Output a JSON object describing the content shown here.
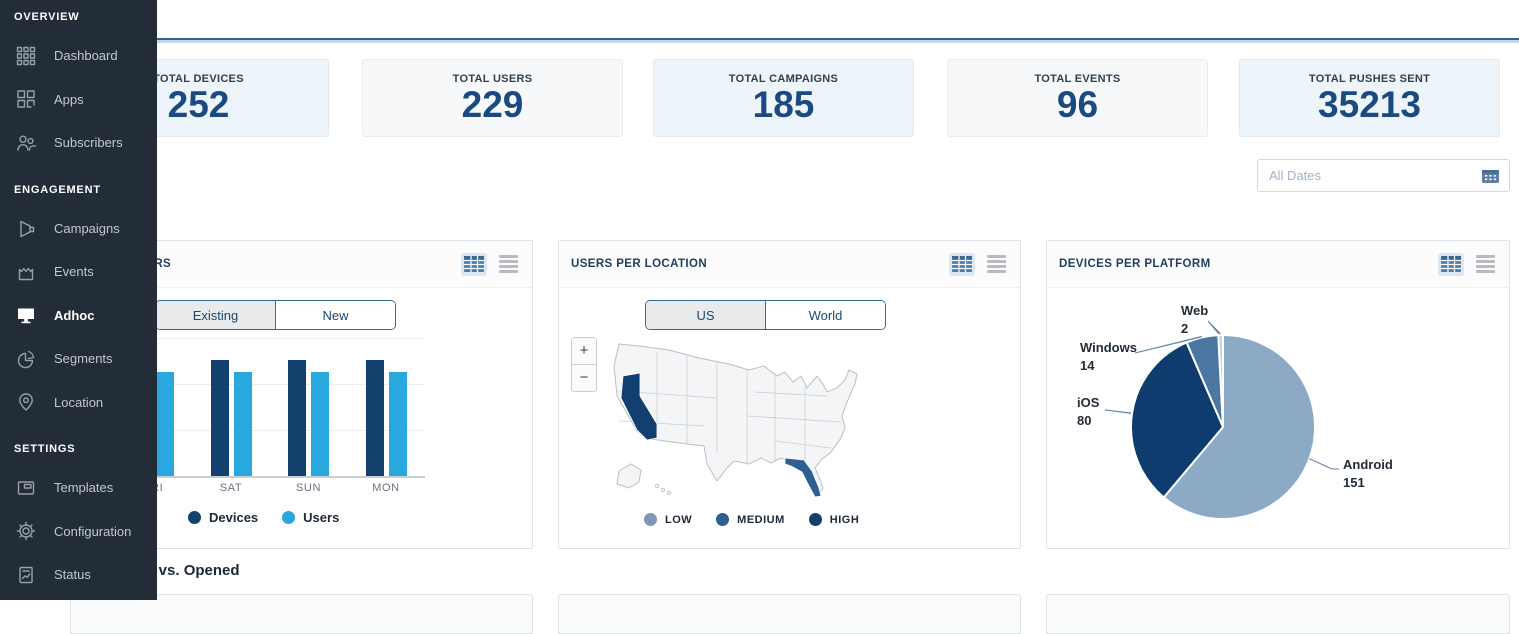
{
  "sidebar": {
    "sections": [
      {
        "label": "OVERVIEW",
        "items": [
          {
            "label": "Dashboard",
            "icon": "grid-icon",
            "active": false
          },
          {
            "label": "Apps",
            "icon": "apps-icon",
            "active": false
          },
          {
            "label": "Subscribers",
            "icon": "subscribers-icon",
            "active": false
          }
        ]
      },
      {
        "label": "ENGAGEMENT",
        "items": [
          {
            "label": "Campaigns",
            "icon": "megaphone-icon",
            "active": false
          },
          {
            "label": "Events",
            "icon": "event-icon",
            "active": false
          },
          {
            "label": "Adhoc",
            "icon": "monitor-icon",
            "active": true
          },
          {
            "label": "Segments",
            "icon": "pie-icon",
            "active": false
          },
          {
            "label": "Location",
            "icon": "pin-icon",
            "active": false
          }
        ]
      },
      {
        "label": "SETTINGS",
        "items": [
          {
            "label": "Templates",
            "icon": "window-icon",
            "active": false
          },
          {
            "label": "Configuration",
            "icon": "gear-icon",
            "active": false
          },
          {
            "label": "Status",
            "icon": "report-icon",
            "active": false
          }
        ]
      }
    ]
  },
  "stats": [
    {
      "label": "TOTAL DEVICES",
      "value": "252",
      "highlight": true
    },
    {
      "label": "TOTAL USERS",
      "value": "229",
      "highlight": false
    },
    {
      "label": "TOTAL CAMPAIGNS",
      "value": "185",
      "highlight": true
    },
    {
      "label": "TOTAL EVENTS",
      "value": "96",
      "highlight": false
    },
    {
      "label": "TOTAL PUSHES SENT",
      "value": "35213",
      "highlight": true
    }
  ],
  "date_filter": {
    "placeholder": "All Dates"
  },
  "panels": {
    "subscribers": {
      "title": "SUBSCRIBERS",
      "toggle": [
        "Existing",
        "New"
      ],
      "active_toggle": "Existing"
    },
    "location": {
      "title": "USERS PER LOCATION",
      "toggle": [
        "US",
        "World"
      ],
      "active_toggle": "US"
    },
    "platform": {
      "title": "DEVICES PER PLATFORM"
    }
  },
  "section_heading": "Sent vs. Opened",
  "colors": {
    "devices_bar": "#14406e",
    "users_bar": "#29a8e0",
    "accent_blue": "#31629a"
  },
  "chart_data": [
    {
      "type": "bar",
      "title": "SUBSCRIBERS",
      "categories": [
        "FRI",
        "SAT",
        "SUN",
        "MON"
      ],
      "series": [
        {
          "name": "Devices",
          "color": "#14406e",
          "values": [
            126,
            126,
            126,
            126
          ]
        },
        {
          "name": "Users",
          "color": "#29a8e0",
          "values": [
            113,
            113,
            113,
            113
          ]
        }
      ],
      "ylim": [
        0,
        150
      ],
      "grid_step": 50,
      "grid": true,
      "legend_position": "bottom"
    },
    {
      "type": "map",
      "title": "USERS PER LOCATION",
      "view": "US",
      "regions": [
        {
          "name": "California",
          "level": "HIGH"
        },
        {
          "name": "Florida",
          "level": "MEDIUM"
        }
      ],
      "levels": [
        {
          "label": "LOW",
          "color": "#7f97b5"
        },
        {
          "label": "MEDIUM",
          "color": "#2d5f92"
        },
        {
          "label": "HIGH",
          "color": "#12406e"
        }
      ],
      "legend_position": "bottom"
    },
    {
      "type": "pie",
      "title": "DEVICES PER PLATFORM",
      "slices": [
        {
          "label": "Android",
          "value": 151,
          "color": "#8ca9c6"
        },
        {
          "label": "iOS",
          "value": 80,
          "color": "#0e3c6f"
        },
        {
          "label": "Windows",
          "value": 14,
          "color": "#4d77a3"
        },
        {
          "label": "Web",
          "value": 2,
          "color": "#c3d3e2"
        }
      ]
    }
  ]
}
